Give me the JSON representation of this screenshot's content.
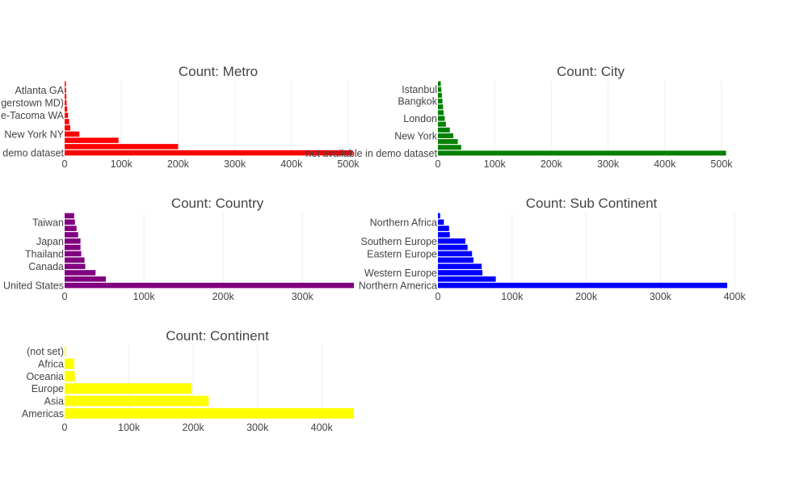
{
  "colors": {
    "metro": "#ff0000",
    "city": "#008000",
    "country": "#800080",
    "subcontinent": "#0000ff",
    "continent": "#ffff00",
    "grid": "#eeeeee",
    "text": "#444444"
  },
  "chart_data": [
    {
      "type": "bar",
      "orientation": "horizontal",
      "title": "Count: Metro",
      "color": "#ff0000",
      "xlim": [
        0,
        510000
      ],
      "xticks": [
        0,
        100000,
        200000,
        300000,
        400000,
        500000
      ],
      "xtick_labels": [
        "0",
        "100k",
        "200k",
        "300k",
        "400k",
        "500k"
      ],
      "categories": [
        "not available in demo dataset",
        "",
        "",
        "New York NY",
        "",
        "",
        "Seattle-Tacoma WA",
        "",
        "Washington DC (Hagerstown MD)",
        "",
        "Atlanta GA",
        ""
      ],
      "category_labels": [
        "demo dataset",
        "New York NY",
        "e-Tacoma WA",
        "gerstown MD)",
        "Atlanta GA"
      ],
      "values": [
        508000,
        200000,
        95000,
        26000,
        10000,
        8000,
        6000,
        4500,
        3500,
        3000,
        2500,
        2000
      ]
    },
    {
      "type": "bar",
      "orientation": "horizontal",
      "title": "Count: City",
      "color": "#008000",
      "xlim": [
        0,
        510000
      ],
      "xticks": [
        0,
        100000,
        200000,
        300000,
        400000,
        500000
      ],
      "xtick_labels": [
        "0",
        "100k",
        "200k",
        "300k",
        "400k",
        "500k"
      ],
      "categories": [
        "not available in demo dataset",
        "",
        "",
        "New York",
        "",
        "",
        "London",
        "",
        "",
        "Bangkok",
        "",
        "Istanbul",
        ""
      ],
      "category_labels": [
        "not available in demo dataset",
        "New York",
        "London",
        "Bangkok",
        "Istanbul"
      ],
      "values": [
        508000,
        41000,
        35000,
        27000,
        21000,
        14000,
        12000,
        10000,
        9000,
        8000,
        7000,
        6000,
        5000
      ]
    },
    {
      "type": "bar",
      "orientation": "horizontal",
      "title": "Count: Country",
      "color": "#800080",
      "xlim": [
        0,
        365000
      ],
      "xticks": [
        0,
        100000,
        200000,
        300000
      ],
      "xtick_labels": [
        "0",
        "100k",
        "200k",
        "300k"
      ],
      "categories": [
        "United States",
        "",
        "",
        "Canada",
        "",
        "Thailand",
        "",
        "Japan",
        "",
        "",
        "Taiwan",
        ""
      ],
      "category_labels": [
        "United States",
        "Canada",
        "Thailand",
        "Japan",
        "Taiwan"
      ],
      "values": [
        365000,
        52000,
        39000,
        26000,
        25000,
        21000,
        20000,
        20000,
        17000,
        15000,
        13000,
        12000
      ]
    },
    {
      "type": "bar",
      "orientation": "horizontal",
      "title": "Count: Sub Continent",
      "color": "#0000ff",
      "xlim": [
        0,
        390000
      ],
      "xticks": [
        0,
        100000,
        200000,
        300000,
        400000
      ],
      "xtick_labels": [
        "0",
        "100k",
        "200k",
        "300k",
        "400k"
      ],
      "categories": [
        "Northern America",
        "",
        "Western Europe",
        "",
        "",
        "Eastern Europe",
        "",
        "Southern Europe",
        "",
        "",
        "Northern Africa",
        ""
      ],
      "category_labels": [
        "Northern America",
        "Western Europe",
        "Eastern Europe",
        "Southern Europe",
        "Northern Africa"
      ],
      "values": [
        390000,
        78000,
        60000,
        59000,
        48000,
        46000,
        40000,
        37000,
        16000,
        15000,
        8000,
        3000
      ]
    },
    {
      "type": "bar",
      "orientation": "horizontal",
      "title": "Count: Continent",
      "color": "#ffff00",
      "xlim": [
        0,
        450000
      ],
      "xticks": [
        0,
        100000,
        200000,
        300000,
        400000
      ],
      "xtick_labels": [
        "0",
        "100k",
        "200k",
        "300k",
        "400k"
      ],
      "categories": [
        "Americas",
        "Asia",
        "Europe",
        "Oceania",
        "Africa",
        "(not set)"
      ],
      "category_labels": [
        "Americas",
        "Asia",
        "Europe",
        "Oceania",
        "Africa",
        "(not set)"
      ],
      "values": [
        450000,
        224000,
        198000,
        16000,
        15000,
        1000
      ]
    }
  ]
}
